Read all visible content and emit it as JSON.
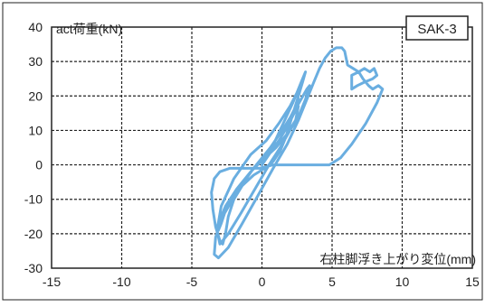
{
  "chart_data": {
    "type": "line",
    "title": "",
    "badge": "SAK-3",
    "ylabel": "act荷重(kN)",
    "xlabel": "右柱脚浮き上がり変位(mm)",
    "xlim": [
      -15,
      15
    ],
    "ylim": [
      -30,
      40
    ],
    "xticks": [
      -15,
      -10,
      -5,
      0,
      5,
      10,
      15
    ],
    "yticks": [
      -30,
      -20,
      -10,
      0,
      10,
      20,
      30,
      40
    ],
    "grid": true,
    "series_color": "#6aaee0",
    "series": [
      {
        "x": [
          0,
          0.5,
          1.2,
          1.8,
          2.3,
          2.6,
          2.4,
          1.8,
          1.0,
          0.2,
          -0.8,
          -1.8,
          -2.6,
          -3.0,
          -3.1,
          -2.9,
          -2.5,
          -1.6,
          -0.6,
          0.3,
          1.1,
          1.8,
          2.3,
          2.6,
          2.5,
          2.0,
          1.2,
          0.3,
          -0.8,
          -2.0,
          -2.9,
          -3.2,
          -3.0,
          -2.4,
          -1.5,
          -0.5,
          0.5,
          1.3,
          2.0,
          2.6,
          3.1,
          3.4,
          3.2,
          2.5,
          1.6,
          0.6,
          -0.6,
          -1.8,
          -2.8,
          -3.3,
          -3.4,
          -3.1,
          -2.4,
          -1.4,
          -0.3,
          0.8,
          1.8,
          2.6,
          3.2,
          3.7,
          4.1,
          4.5,
          4.9,
          5.3,
          5.7,
          5.9,
          6.0,
          6.1,
          6.5,
          6.9,
          7.3,
          7.7,
          8.0,
          8.2,
          7.9,
          7.3,
          6.8,
          6.4,
          6.4,
          6.9,
          7.2,
          7.6,
          7.9,
          8.3,
          8.6,
          8.2,
          7.4,
          6.4,
          5.6,
          4.8,
          3.9,
          2.9,
          1.9,
          0.8,
          -0.2,
          -1.3,
          -2.3,
          -3.0,
          -3.4,
          -3.6,
          -3.5,
          -3.3,
          -3.0,
          -2.8,
          -2.6,
          -2.4,
          -2.0,
          -1.4,
          -0.6,
          0.2,
          0.8,
          1.3,
          1.7,
          2.0,
          2.3,
          2.6,
          2.9,
          3.1,
          2.8,
          2.2,
          1.4,
          0.6,
          0
        ],
        "y": [
          0,
          3,
          7,
          11,
          15,
          17,
          13,
          9,
          5,
          2,
          -2,
          -7,
          -12,
          -16,
          -19,
          -17,
          -12,
          -6,
          -1,
          3,
          8,
          12,
          16,
          19,
          21,
          17,
          12,
          7,
          3,
          -4,
          -12,
          -19,
          -23,
          -20,
          -14,
          -7,
          0,
          5,
          10,
          14,
          19,
          23,
          22,
          17,
          11,
          5,
          -1,
          -8,
          -15,
          -21,
          -26,
          -27,
          -24,
          -17,
          -9,
          -1,
          6,
          13,
          19,
          24,
          28,
          31,
          33,
          34,
          34,
          33,
          31,
          29,
          28,
          27,
          28,
          27,
          28,
          26,
          25,
          24,
          23,
          22,
          26,
          27,
          25,
          23,
          22,
          23,
          22,
          18,
          12,
          6,
          2,
          0,
          0,
          0,
          0,
          0,
          -1,
          -1,
          -1,
          -2,
          -4,
          -8,
          -13,
          -18,
          -22,
          -23,
          -20,
          -15,
          -10,
          -6,
          -3,
          -1,
          1,
          4,
          8,
          12,
          16,
          20,
          24,
          27,
          24,
          18,
          11,
          4,
          0
        ]
      }
    ]
  }
}
